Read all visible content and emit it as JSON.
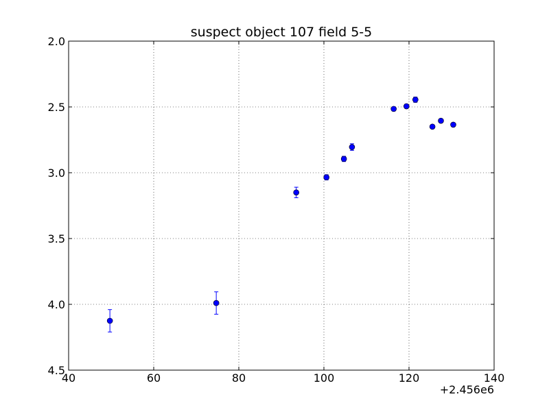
{
  "chart_data": {
    "type": "scatter",
    "title": "suspect object 107 field 5-5",
    "xlabel": "",
    "ylabel": "",
    "x_offset_label": "+2.456e6",
    "xlim": [
      40,
      140
    ],
    "ylim": [
      2.0,
      4.5
    ],
    "y_inverted": true,
    "grid": true,
    "x_ticks": [
      "40",
      "60",
      "80",
      "100",
      "120",
      "140"
    ],
    "y_ticks": [
      "2.0",
      "2.5",
      "3.0",
      "3.5",
      "4.0",
      "4.5"
    ],
    "marker_color": "#0000ff",
    "points": [
      {
        "x": 49.7,
        "y": 4.125,
        "err": 0.085
      },
      {
        "x": 74.7,
        "y": 3.99,
        "err": 0.085
      },
      {
        "x": 93.5,
        "y": 3.15,
        "err": 0.04
      },
      {
        "x": 100.6,
        "y": 3.035,
        "err": 0.02
      },
      {
        "x": 104.7,
        "y": 2.895,
        "err": 0.02
      },
      {
        "x": 106.6,
        "y": 2.805,
        "err": 0.025
      },
      {
        "x": 116.4,
        "y": 2.515,
        "err": 0.015
      },
      {
        "x": 119.4,
        "y": 2.495,
        "err": 0.015
      },
      {
        "x": 121.5,
        "y": 2.445,
        "err": 0.02
      },
      {
        "x": 125.5,
        "y": 2.65,
        "err": 0.012
      },
      {
        "x": 127.5,
        "y": 2.605,
        "err": 0.012
      },
      {
        "x": 130.4,
        "y": 2.635,
        "err": 0.012
      }
    ]
  }
}
